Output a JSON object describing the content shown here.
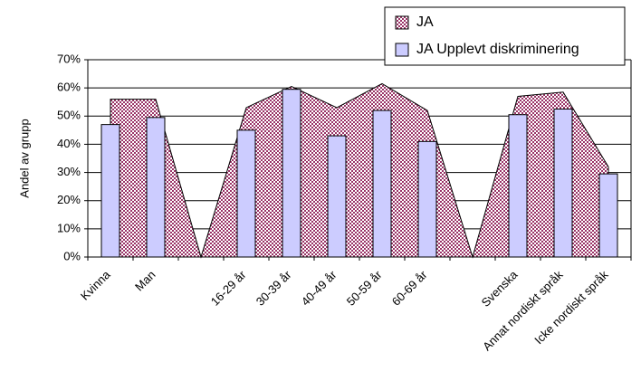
{
  "chart_data": {
    "type": "bar-area",
    "y_label": "Andel av grupp",
    "categories": [
      "Kvinna",
      "Man",
      null,
      "16-29 år",
      "30-39 år",
      "40-49 år",
      "50-59 år",
      "60-69 år",
      null,
      "Svenska",
      "Annat nordiskt språk",
      "Icke nordiskt språk"
    ],
    "series": [
      {
        "name": "JA",
        "type": "area",
        "color": "#993366",
        "values": [
          56,
          56,
          0,
          53,
          60.5,
          53,
          61.5,
          52,
          0,
          57,
          58.5,
          32
        ]
      },
      {
        "name": "JA Upplevt diskriminering",
        "type": "bar",
        "color": "#ccccff",
        "values": [
          47,
          49.5,
          null,
          45,
          59.5,
          43,
          52,
          41,
          null,
          50.5,
          52.5,
          29.5
        ]
      }
    ],
    "ylim": [
      0,
      70
    ],
    "yticks": [
      {
        "value": 0,
        "label": "0%"
      },
      {
        "value": 10,
        "label": "10%"
      },
      {
        "value": 20,
        "label": "20%"
      },
      {
        "value": 30,
        "label": "30%"
      },
      {
        "value": 40,
        "label": "40%"
      },
      {
        "value": 50,
        "label": "50%"
      },
      {
        "value": 60,
        "label": "60%"
      },
      {
        "value": 70,
        "label": "70%"
      }
    ],
    "grid": true
  }
}
